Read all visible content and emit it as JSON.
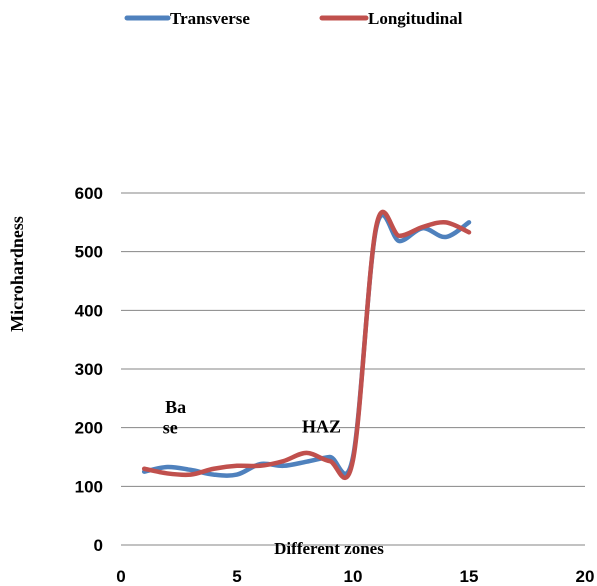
{
  "chart_data": {
    "type": "line",
    "title": "",
    "xlabel": "Different zones",
    "ylabel": "Microhardness",
    "xlim": [
      0,
      20
    ],
    "ylim": [
      0,
      600
    ],
    "x_ticks": [
      0,
      5,
      10,
      15,
      20
    ],
    "y_ticks": [
      0,
      100,
      200,
      300,
      400,
      500,
      600
    ],
    "grid": "horizontal",
    "legend_position": "top",
    "series": [
      {
        "name": "Transverse",
        "color": "#4f81bd",
        "x": [
          1,
          2,
          3,
          4,
          5,
          6,
          7,
          8,
          9,
          10,
          11,
          12,
          13,
          14,
          15
        ],
        "y": [
          125,
          133,
          128,
          120,
          120,
          138,
          135,
          142,
          150,
          150,
          540,
          518,
          540,
          525,
          550
        ]
      },
      {
        "name": "Longitudinal",
        "color": "#c0504d",
        "x": [
          1,
          2,
          3,
          4,
          5,
          6,
          7,
          8,
          9,
          10,
          11,
          12,
          13,
          14,
          15
        ],
        "y": [
          130,
          122,
          120,
          130,
          135,
          135,
          143,
          157,
          143,
          145,
          543,
          527,
          542,
          550,
          533
        ]
      }
    ],
    "annotations": [
      {
        "text": "Ba",
        "x": 1.9,
        "y": 225
      },
      {
        "text": "se",
        "x": 1.8,
        "y": 190
      },
      {
        "text": "HAZ",
        "x": 7.8,
        "y": 192
      }
    ]
  }
}
